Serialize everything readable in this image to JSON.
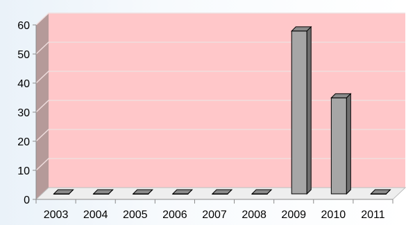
{
  "chart_data": {
    "type": "bar",
    "categories": [
      "2003",
      "2004",
      "2005",
      "2006",
      "2007",
      "2008",
      "2009",
      "2010",
      "2011"
    ],
    "values": [
      0,
      0,
      0,
      0,
      0,
      0,
      56,
      33,
      0
    ],
    "ylim": [
      0,
      60
    ],
    "yticks": [
      0,
      10,
      20,
      30,
      40,
      50,
      60
    ],
    "grid": true,
    "colors": {
      "back_wall": "#ffc7c9",
      "side_wall": "#b59a99",
      "floor": "#eeeeee",
      "bar_front": "#a6a6a6",
      "bar_top": "#8a8a8a",
      "bar_side": "#6e6e6e",
      "gridline": "#f0dede"
    }
  }
}
